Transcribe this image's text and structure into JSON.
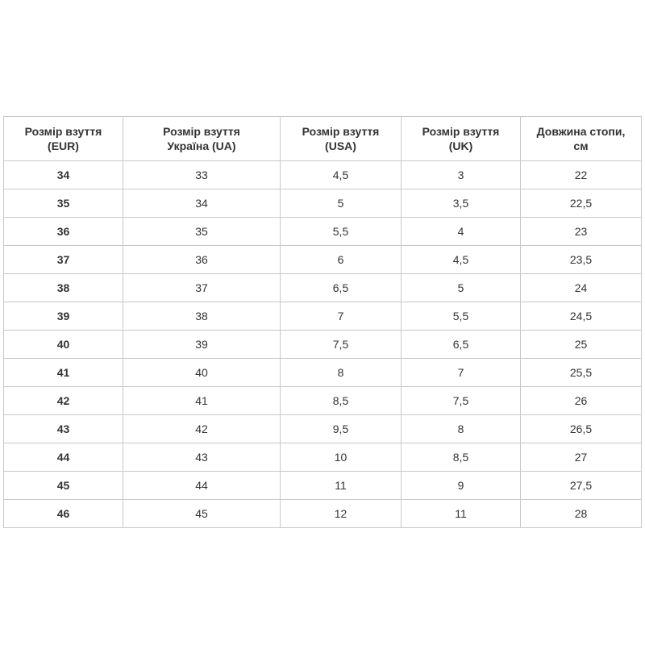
{
  "table": {
    "headers": [
      [
        "Розмір взуття",
        "(EUR)"
      ],
      [
        "Розмір взуття",
        "Україна (UA)"
      ],
      [
        "Розмір взуття",
        "(USA)"
      ],
      [
        "Розмір взуття",
        "(UK)"
      ],
      [
        "Довжина стопи,",
        "см"
      ]
    ],
    "rows": [
      [
        "34",
        "33",
        "4,5",
        "3",
        "22"
      ],
      [
        "35",
        "34",
        "5",
        "3,5",
        "22,5"
      ],
      [
        "36",
        "35",
        "5,5",
        "4",
        "23"
      ],
      [
        "37",
        "36",
        "6",
        "4,5",
        "23,5"
      ],
      [
        "38",
        "37",
        "6,5",
        "5",
        "24"
      ],
      [
        "39",
        "38",
        "7",
        "5,5",
        "24,5"
      ],
      [
        "40",
        "39",
        "7,5",
        "6,5",
        "25"
      ],
      [
        "41",
        "40",
        "8",
        "7",
        "25,5"
      ],
      [
        "42",
        "41",
        "8,5",
        "7,5",
        "26"
      ],
      [
        "43",
        "42",
        "9,5",
        "8",
        "26,5"
      ],
      [
        "44",
        "43",
        "10",
        "8,5",
        "27"
      ],
      [
        "45",
        "44",
        "11",
        "9",
        "27,5"
      ],
      [
        "46",
        "45",
        "12",
        "11",
        "28"
      ]
    ]
  }
}
